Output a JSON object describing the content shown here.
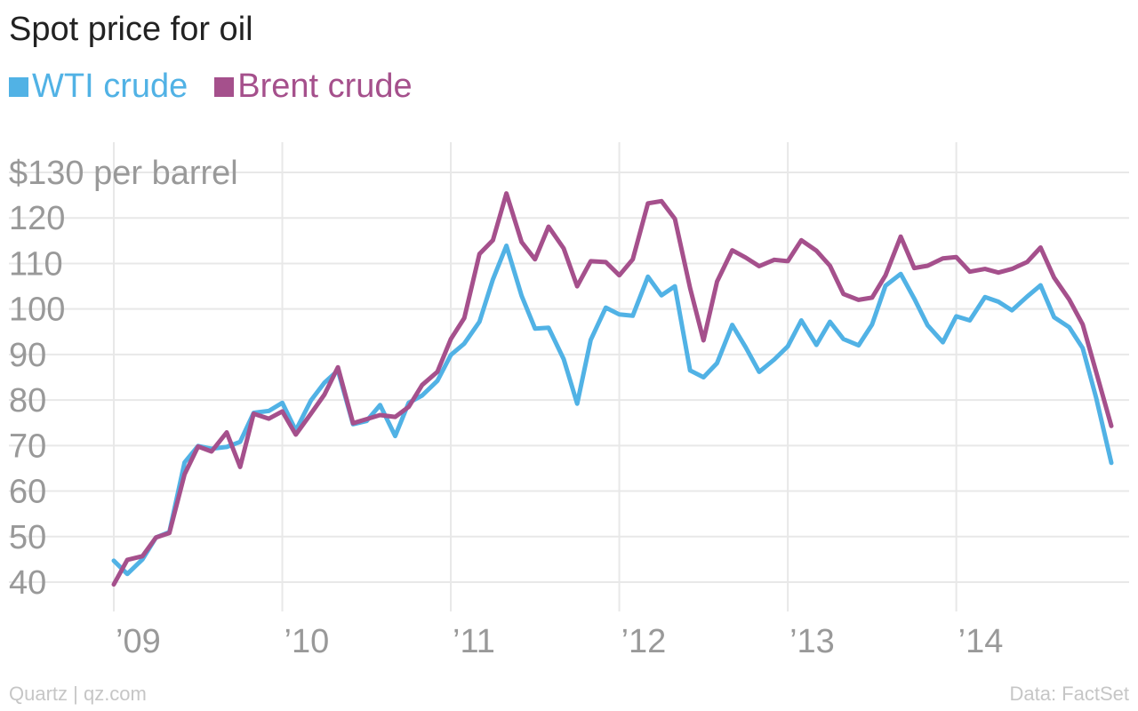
{
  "chart_data": {
    "type": "line",
    "title": "Spot price for oil",
    "ylabel": "$130 per barrel",
    "xlabel": "",
    "ylim": [
      40,
      130
    ],
    "xlim": [
      2009.0,
      2014.92
    ],
    "y_ticks": [
      120,
      110,
      100,
      90,
      80,
      70,
      60,
      50,
      40
    ],
    "x_ticks": [
      {
        "x": 2009,
        "label": "’09"
      },
      {
        "x": 2010,
        "label": "’10"
      },
      {
        "x": 2011,
        "label": "’11"
      },
      {
        "x": 2012,
        "label": "’12"
      },
      {
        "x": 2013,
        "label": "’13"
      },
      {
        "x": 2014,
        "label": "’14"
      }
    ],
    "grid": true,
    "legend_position": "top-left",
    "series": [
      {
        "name": "WTI crude",
        "color": "#51b2e5",
        "values": [
          [
            2009.0,
            44.7
          ],
          [
            2009.08,
            41.8
          ],
          [
            2009.17,
            45.0
          ],
          [
            2009.25,
            49.8
          ],
          [
            2009.33,
            51.0
          ],
          [
            2009.42,
            66.3
          ],
          [
            2009.5,
            69.9
          ],
          [
            2009.58,
            69.3
          ],
          [
            2009.67,
            69.7
          ],
          [
            2009.75,
            70.8
          ],
          [
            2009.83,
            77.2
          ],
          [
            2009.92,
            77.6
          ],
          [
            2010.0,
            79.4
          ],
          [
            2010.08,
            73.3
          ],
          [
            2010.17,
            79.9
          ],
          [
            2010.25,
            83.8
          ],
          [
            2010.33,
            86.5
          ],
          [
            2010.42,
            74.7
          ],
          [
            2010.5,
            75.4
          ],
          [
            2010.58,
            78.9
          ],
          [
            2010.67,
            72.1
          ],
          [
            2010.75,
            79.4
          ],
          [
            2010.83,
            81.0
          ],
          [
            2010.92,
            84.2
          ],
          [
            2011.0,
            89.9
          ],
          [
            2011.08,
            92.4
          ],
          [
            2011.17,
            97.2
          ],
          [
            2011.25,
            106.5
          ],
          [
            2011.33,
            113.9
          ],
          [
            2011.42,
            102.9
          ],
          [
            2011.5,
            95.7
          ],
          [
            2011.58,
            95.9
          ],
          [
            2011.67,
            89.0
          ],
          [
            2011.75,
            79.2
          ],
          [
            2011.83,
            93.2
          ],
          [
            2011.92,
            100.3
          ],
          [
            2012.0,
            98.8
          ],
          [
            2012.08,
            98.5
          ],
          [
            2012.17,
            107.1
          ],
          [
            2012.25,
            103.0
          ],
          [
            2012.33,
            105.0
          ],
          [
            2012.42,
            86.5
          ],
          [
            2012.5,
            85.0
          ],
          [
            2012.58,
            88.1
          ],
          [
            2012.67,
            96.5
          ],
          [
            2012.75,
            91.6
          ],
          [
            2012.83,
            86.2
          ],
          [
            2012.92,
            88.9
          ],
          [
            2013.0,
            91.8
          ],
          [
            2013.08,
            97.5
          ],
          [
            2013.17,
            92.1
          ],
          [
            2013.25,
            97.2
          ],
          [
            2013.33,
            93.4
          ],
          [
            2013.42,
            92.0
          ],
          [
            2013.5,
            96.6
          ],
          [
            2013.58,
            105.1
          ],
          [
            2013.67,
            107.7
          ],
          [
            2013.75,
            102.3
          ],
          [
            2013.83,
            96.4
          ],
          [
            2013.92,
            92.7
          ],
          [
            2014.0,
            98.4
          ],
          [
            2014.08,
            97.5
          ],
          [
            2014.17,
            102.6
          ],
          [
            2014.25,
            101.6
          ],
          [
            2014.33,
            99.7
          ],
          [
            2014.42,
            102.7
          ],
          [
            2014.5,
            105.2
          ],
          [
            2014.58,
            98.2
          ],
          [
            2014.67,
            96.0
          ],
          [
            2014.75,
            91.4
          ],
          [
            2014.83,
            80.5
          ],
          [
            2014.92,
            66.2
          ]
        ]
      },
      {
        "name": "Brent crude",
        "color": "#a5508c",
        "values": [
          [
            2009.0,
            39.5
          ],
          [
            2009.08,
            44.9
          ],
          [
            2009.17,
            45.7
          ],
          [
            2009.25,
            49.8
          ],
          [
            2009.33,
            50.8
          ],
          [
            2009.42,
            63.7
          ],
          [
            2009.5,
            69.8
          ],
          [
            2009.58,
            68.7
          ],
          [
            2009.67,
            72.9
          ],
          [
            2009.75,
            65.3
          ],
          [
            2009.83,
            77.0
          ],
          [
            2009.92,
            75.9
          ],
          [
            2010.0,
            77.5
          ],
          [
            2010.08,
            72.4
          ],
          [
            2010.17,
            77.0
          ],
          [
            2010.25,
            81.2
          ],
          [
            2010.33,
            87.2
          ],
          [
            2010.42,
            74.9
          ],
          [
            2010.5,
            75.8
          ],
          [
            2010.58,
            76.7
          ],
          [
            2010.67,
            76.3
          ],
          [
            2010.75,
            78.5
          ],
          [
            2010.83,
            83.3
          ],
          [
            2010.92,
            86.2
          ],
          [
            2011.0,
            93.4
          ],
          [
            2011.08,
            98.0
          ],
          [
            2011.17,
            112.1
          ],
          [
            2011.25,
            115.1
          ],
          [
            2011.33,
            125.4
          ],
          [
            2011.42,
            114.7
          ],
          [
            2011.5,
            110.9
          ],
          [
            2011.58,
            118.1
          ],
          [
            2011.67,
            113.3
          ],
          [
            2011.75,
            105.0
          ],
          [
            2011.83,
            110.5
          ],
          [
            2011.92,
            110.3
          ],
          [
            2012.0,
            107.4
          ],
          [
            2012.08,
            110.9
          ],
          [
            2012.17,
            123.2
          ],
          [
            2012.25,
            123.7
          ],
          [
            2012.33,
            119.8
          ],
          [
            2012.42,
            104.6
          ],
          [
            2012.5,
            93.1
          ],
          [
            2012.58,
            106.0
          ],
          [
            2012.67,
            112.9
          ],
          [
            2012.75,
            111.3
          ],
          [
            2012.83,
            109.4
          ],
          [
            2012.92,
            110.8
          ],
          [
            2013.0,
            110.5
          ],
          [
            2013.08,
            115.1
          ],
          [
            2013.17,
            112.8
          ],
          [
            2013.25,
            109.5
          ],
          [
            2013.33,
            103.3
          ],
          [
            2013.42,
            102.0
          ],
          [
            2013.5,
            102.5
          ],
          [
            2013.58,
            107.4
          ],
          [
            2013.67,
            115.9
          ],
          [
            2013.75,
            109.0
          ],
          [
            2013.83,
            109.5
          ],
          [
            2013.92,
            111.1
          ],
          [
            2014.0,
            111.4
          ],
          [
            2014.08,
            108.2
          ],
          [
            2014.17,
            108.8
          ],
          [
            2014.25,
            108.0
          ],
          [
            2014.33,
            108.8
          ],
          [
            2014.42,
            110.3
          ],
          [
            2014.5,
            113.5
          ],
          [
            2014.58,
            106.9
          ],
          [
            2014.67,
            102.1
          ],
          [
            2014.75,
            96.6
          ],
          [
            2014.83,
            86.2
          ],
          [
            2014.92,
            74.3
          ]
        ]
      }
    ]
  },
  "footer": {
    "source_left": "Quartz | qz.com",
    "source_right": "Data: FactSet"
  }
}
